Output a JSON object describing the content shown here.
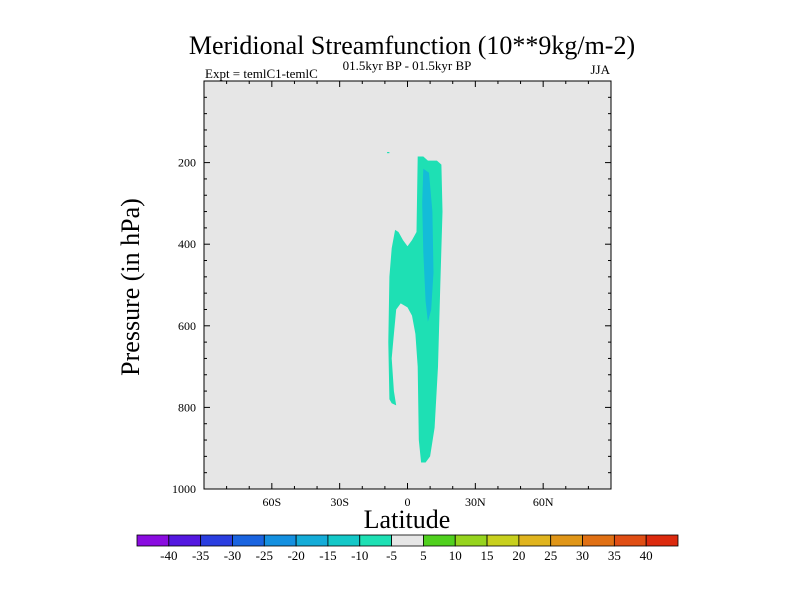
{
  "chart_data": {
    "type": "contour",
    "title": "Meridional Streamfunction (10**9kg/m-2)",
    "subtitle_left": "Expt = temlC1-temlC",
    "subtitle_center": "01.5kyr BP - 01.5kyr BP",
    "subtitle_right": "JJA",
    "xlabel": "Latitude",
    "ylabel": "Pressure (in hPa)",
    "xlim": [
      -90,
      90
    ],
    "ylim": [
      1000,
      0
    ],
    "x_ticks": [
      {
        "value": -60,
        "label": "60S"
      },
      {
        "value": -30,
        "label": "30S"
      },
      {
        "value": 0,
        "label": "0"
      },
      {
        "value": 30,
        "label": "30N"
      },
      {
        "value": 60,
        "label": "60N"
      }
    ],
    "y_ticks": [
      {
        "value": 200,
        "label": "200"
      },
      {
        "value": 400,
        "label": "400"
      },
      {
        "value": 600,
        "label": "600"
      },
      {
        "value": 800,
        "label": "800"
      },
      {
        "value": 1000,
        "label": "1000"
      }
    ],
    "background_color": "#e6e6e6",
    "regions": [
      {
        "name": "outer-minus5-to-minus10",
        "level_range": [
          -10,
          -5
        ],
        "color": "#1ee0b4",
        "points": [
          [
            4.5,
            185
          ],
          [
            7,
            185
          ],
          [
            9,
            195
          ],
          [
            13,
            195
          ],
          [
            15,
            205
          ],
          [
            15.5,
            320
          ],
          [
            14.5,
            500
          ],
          [
            13.5,
            700
          ],
          [
            12,
            850
          ],
          [
            10,
            920
          ],
          [
            8,
            935
          ],
          [
            6,
            935
          ],
          [
            5,
            880
          ],
          [
            4.5,
            700
          ],
          [
            3.5,
            620
          ],
          [
            2,
            575
          ],
          [
            0,
            555
          ],
          [
            -3,
            545
          ],
          [
            -5,
            560
          ],
          [
            -6,
            620
          ],
          [
            -7,
            680
          ],
          [
            -6,
            760
          ],
          [
            -5,
            795
          ],
          [
            -7,
            790
          ],
          [
            -8,
            780
          ],
          [
            -8.5,
            640
          ],
          [
            -8,
            480
          ],
          [
            -7,
            410
          ],
          [
            -5.5,
            365
          ],
          [
            -4,
            370
          ],
          [
            -2,
            390
          ],
          [
            0,
            405
          ],
          [
            2,
            390
          ],
          [
            4,
            370
          ]
        ]
      },
      {
        "name": "inner-minus10-to-minus15",
        "level_range": [
          -15,
          -10
        ],
        "color": "#14bcd8",
        "points": [
          [
            7,
            215
          ],
          [
            9.5,
            225
          ],
          [
            11,
            320
          ],
          [
            11.5,
            470
          ],
          [
            10.5,
            560
          ],
          [
            9,
            590
          ],
          [
            8,
            540
          ],
          [
            7,
            420
          ],
          [
            6.5,
            300
          ]
        ]
      },
      {
        "name": "isolated-speck",
        "level_range": [
          -10,
          -5
        ],
        "color": "#1ee0b4",
        "points": [
          [
            -9,
            174
          ],
          [
            -8,
            174
          ],
          [
            -8,
            177
          ],
          [
            -9,
            177
          ]
        ]
      }
    ],
    "colorbar": {
      "levels": [
        "-40",
        "-35",
        "-30",
        "-25",
        "-20",
        "-15",
        "-10",
        "-5",
        "5",
        "10",
        "15",
        "20",
        "25",
        "30",
        "35",
        "40"
      ],
      "colors": [
        "#8a0ce0",
        "#5418e0",
        "#2a3ee0",
        "#1a64e0",
        "#1490e0",
        "#14acd8",
        "#14c8c8",
        "#1ee0b4",
        "#e6e6e6",
        "#50d01e",
        "#96d41e",
        "#c8d01e",
        "#e0b41e",
        "#e09618",
        "#e07014",
        "#e04e14",
        "#dc2a0e"
      ]
    }
  }
}
